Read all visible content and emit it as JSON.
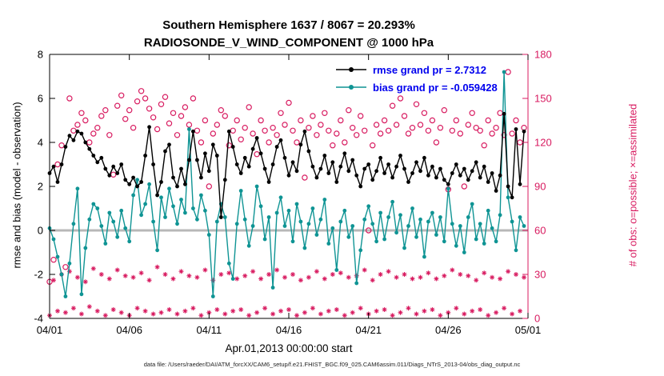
{
  "title": {
    "line1": "Southern Hemisphere 1637 / 8067 = 20.293%",
    "line2": "RADIOSONDE_V_WIND_COMPONENT @ 1000 hPa"
  },
  "legend": {
    "text_color": "#0000EE",
    "items": [
      {
        "name": "rmse",
        "label": "rmse grand pr = 2.7312",
        "color": "#000000"
      },
      {
        "name": "bias",
        "label": "bias grand pr = -0.059428",
        "color": "#0f9494"
      }
    ]
  },
  "caption": "data file: /Users/raeder/DAI/ATM_forcXX/CAM6_setup/f.e21.FHIST_BGC.f09_025.CAM6assim.011/Diags_NTrS_2013-04/obs_diag_output.nc",
  "chart_data": {
    "type": "line",
    "title": "Southern Hemisphere 1637 / 8067 = 20.293%",
    "subtitle": "RADIOSONDE_V_WIND_COMPONENT @ 1000 hPa",
    "xlabel": "Apr.01,2013 00:00:00 start",
    "ylabel_left": "rmse and bias (model - observation)",
    "ylabel_right": "# of obs: o=possible; ×=assimilated",
    "grand_rmse": 2.7312,
    "grand_bias": -0.059428,
    "n_used": 1637,
    "n_possible": 8067,
    "percent_used": "20.293%",
    "ylim_left": [
      -4,
      8
    ],
    "ylim_right": [
      0,
      180
    ],
    "yticks_left": [
      -4,
      -2,
      0,
      2,
      4,
      6,
      8
    ],
    "yticks_right": [
      0,
      30,
      60,
      90,
      120,
      150,
      180
    ],
    "xtick_labels": [
      "04/01",
      "04/06",
      "04/11",
      "04/16",
      "04/21",
      "04/26",
      "05/01"
    ],
    "xtick_positions": [
      0,
      20,
      40,
      60,
      80,
      100,
      120
    ],
    "x_count": 120,
    "grid": false,
    "legend_position": "top-right-inside",
    "left_axis_color": "#000000",
    "right_axis_color": "#d81b60",
    "zero_line": {
      "value": 0,
      "color": "#b8b8b8"
    },
    "series": [
      {
        "name": "rmse",
        "axis": "left",
        "marker": "dot",
        "line": true,
        "color": "#000000",
        "values": [
          2.6,
          2.9,
          2.2,
          3.0,
          3.8,
          4.3,
          4.1,
          4.5,
          4.4,
          4.0,
          3.7,
          3.4,
          3.1,
          3.3,
          2.8,
          2.5,
          2.9,
          2.6,
          3.0,
          2.3,
          2.1,
          2.4,
          2.0,
          2.2,
          3.4,
          4.7,
          3.0,
          1.6,
          2.2,
          3.6,
          3.9,
          2.4,
          2.0,
          2.8,
          2.1,
          3.2,
          4.5,
          3.2,
          2.4,
          3.5,
          2.7,
          3.9,
          3.4,
          0.6,
          2.3,
          4.5,
          3.8,
          3.0,
          2.6,
          3.3,
          2.9,
          3.7,
          4.2,
          3.5,
          2.8,
          2.2,
          3.0,
          3.8,
          4.1,
          3.3,
          2.5,
          3.1,
          2.7,
          3.9,
          4.5,
          3.6,
          2.9,
          2.4,
          2.8,
          3.4,
          2.6,
          3.1,
          2.2,
          2.9,
          3.5,
          2.7,
          3.2,
          2.5,
          2.0,
          2.8,
          3.0,
          2.3,
          2.7,
          3.3,
          2.6,
          3.0,
          2.4,
          2.9,
          3.4,
          2.8,
          2.2,
          2.6,
          3.1,
          2.7,
          3.3,
          2.5,
          2.9,
          2.4,
          2.8,
          2.3,
          2.1,
          2.6,
          3.0,
          2.5,
          2.8,
          2.3,
          2.7,
          3.1,
          2.4,
          2.9,
          2.2,
          2.6,
          1.8,
          2.5,
          5.3,
          2.0,
          1.5,
          4.6,
          2.1,
          4.5
        ]
      },
      {
        "name": "bias",
        "axis": "left",
        "marker": "dot",
        "line": true,
        "color": "#0f9494",
        "values": [
          0.1,
          -0.4,
          -1.2,
          -2.0,
          -3.0,
          -1.5,
          0.3,
          1.9,
          -2.9,
          -0.8,
          0.5,
          1.2,
          1.0,
          0.2,
          -0.6,
          0.8,
          0.4,
          -0.3,
          0.9,
          0.1,
          -0.5,
          1.6,
          2.3,
          0.7,
          1.2,
          2.1,
          0.4,
          -0.9,
          1.5,
          0.6,
          1.9,
          1.1,
          0.3,
          1.4,
          0.8,
          4.6,
          1.0,
          0.5,
          1.6,
          0.9,
          -0.2,
          -3.0,
          0.4,
          1.2,
          0.6,
          -1.5,
          -2.2,
          0.3,
          1.8,
          0.5,
          -0.7,
          0.2,
          2.0,
          1.1,
          -0.4,
          0.6,
          -2.6,
          0.8,
          1.5,
          0.2,
          0.9,
          -0.5,
          1.2,
          0.4,
          -0.8,
          0.3,
          1.0,
          -0.2,
          0.5,
          1.4,
          -0.6,
          0.1,
          -1.8,
          0.4,
          0.9,
          -0.3,
          0.2,
          -2.4,
          -0.9,
          0.5,
          1.1,
          0.3,
          -0.5,
          0.8,
          -0.4,
          0.6,
          1.3,
          -0.1,
          0.7,
          -0.8,
          0.2,
          1.0,
          -0.3,
          0.5,
          -1.2,
          0.4,
          0.8,
          -0.2,
          0.6,
          -0.5,
          1.9,
          0.3,
          -0.7,
          0.2,
          -1.0,
          0.6,
          1.2,
          -0.4,
          0.3,
          -0.6,
          0.9,
          0.1,
          -0.5,
          0.7,
          7.2,
          1.5,
          0.4,
          -0.9,
          0.6,
          0.2
        ]
      },
      {
        "name": "possible",
        "axis": "right",
        "marker": "circle-open",
        "line": false,
        "color": "#d81b60",
        "values": [
          25,
          40,
          105,
          118,
          35,
          150,
          128,
          132,
          140,
          135,
          120,
          126,
          130,
          138,
          142,
          125,
          98,
          145,
          152,
          136,
          142,
          130,
          148,
          155,
          150,
          143,
          137,
          129,
          146,
          151,
          133,
          140,
          125,
          138,
          144,
          132,
          150,
          128,
          120,
          135,
          90,
          126,
          132,
          142,
          138,
          118,
          128,
          135,
          122,
          130,
          144,
          126,
          112,
          135,
          128,
          120,
          130,
          125,
          140,
          132,
          147,
          128,
          120,
          135,
          96,
          130,
          138,
          125,
          132,
          140,
          128,
          118,
          126,
          135,
          120,
          142,
          130,
          125,
          138,
          128,
          60,
          118,
          132,
          126,
          135,
          128,
          145,
          132,
          150,
          138,
          126,
          130,
          146,
          132,
          140,
          128,
          135,
          120,
          130,
          142,
          88,
          128,
          135,
          126,
          90,
          132,
          140,
          130,
          128,
          118,
          135,
          126,
          130,
          140,
          125,
          168,
          126,
          135,
          120,
          130
        ]
      },
      {
        "name": "assimilated",
        "axis": "right",
        "marker": "asterisk",
        "line": false,
        "color": "#d81b60",
        "values": [
          2,
          26,
          5,
          30,
          4,
          32,
          7,
          28,
          3,
          25,
          8,
          34,
          5,
          30,
          2,
          27,
          6,
          33,
          4,
          29,
          2,
          28,
          7,
          31,
          5,
          26,
          3,
          35,
          4,
          30,
          6,
          27,
          3,
          32,
          5,
          29,
          7,
          28,
          2,
          33,
          4,
          26,
          6,
          30,
          3,
          31,
          5,
          27,
          6,
          29,
          2,
          32,
          4,
          27,
          7,
          30,
          3,
          33,
          5,
          28,
          6,
          30,
          2,
          26,
          4,
          28,
          7,
          32,
          3,
          27,
          5,
          30,
          6,
          31,
          2,
          28,
          4,
          29,
          7,
          33,
          3,
          26,
          5,
          30,
          6,
          32,
          2,
          28,
          4,
          30,
          7,
          27,
          3,
          28,
          5,
          31,
          6,
          27,
          2,
          29,
          4,
          33,
          7,
          30,
          3,
          29,
          5,
          26,
          6,
          31,
          2,
          28,
          4,
          27,
          7,
          32,
          3,
          30,
          5,
          28
        ]
      }
    ]
  }
}
